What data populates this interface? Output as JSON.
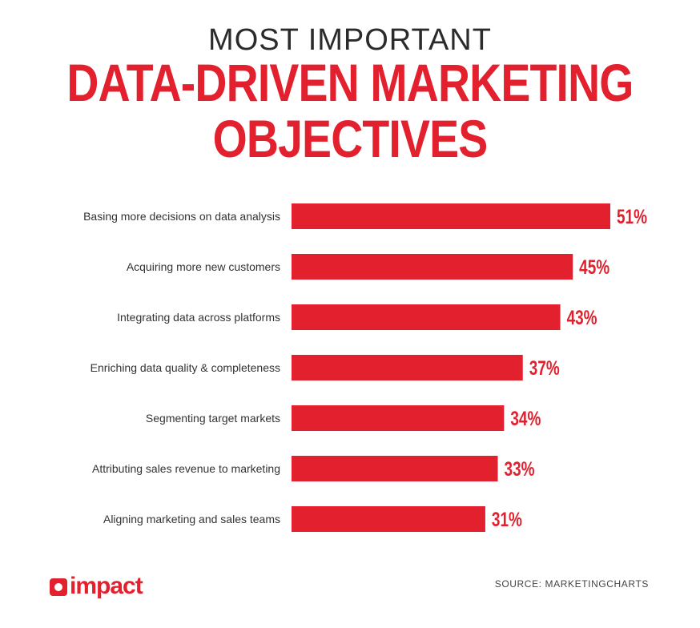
{
  "header": {
    "title_top": "MOST IMPORTANT",
    "title_main_line1": "DATA-DRIVEN MARKETING",
    "title_main_line2": "OBJECTIVES"
  },
  "chart_data": {
    "type": "bar",
    "orientation": "horizontal",
    "title": "MOST IMPORTANT DATA-DRIVEN MARKETING OBJECTIVES",
    "categories": [
      "Basing more decisions on data analysis",
      "Acquiring more new customers",
      "Integrating data across platforms",
      "Enriching data quality & completeness",
      "Segmenting target markets",
      "Attributing sales revenue to marketing",
      "Aligning marketing and sales teams"
    ],
    "values": [
      51,
      45,
      43,
      37,
      34,
      33,
      31
    ],
    "value_labels": [
      "51%",
      "45%",
      "43%",
      "37%",
      "34%",
      "33%",
      "31%"
    ],
    "unit": "%",
    "xlim": [
      0,
      51
    ],
    "grid": false,
    "bar_color": "#e3202e"
  },
  "footer": {
    "brand": "impact",
    "source": "SOURCE: MARKETINGCHARTS"
  },
  "colors": {
    "accent": "#e3202e",
    "text": "#333333"
  }
}
